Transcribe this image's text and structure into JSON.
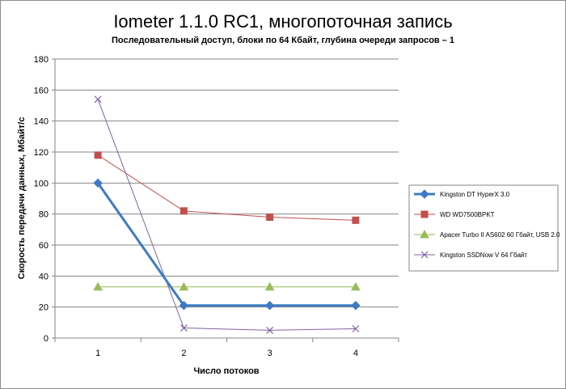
{
  "chart_data": {
    "type": "line",
    "title": "Iometer 1.1.0 RC1, многопоточная запись",
    "subtitle": "Последовательный  доступ, блоки  по 64 Кбайт,  глубина очереди запросов – 1",
    "xlabel": "Число  потоков",
    "ylabel": "Скорость  передачи данных, Мбайт/с",
    "x": [
      1,
      2,
      3,
      4
    ],
    "ylim": [
      0,
      180
    ],
    "yticks": [
      0,
      20,
      40,
      60,
      80,
      100,
      120,
      140,
      160,
      180
    ],
    "grid": true,
    "legend_position": "right",
    "series": [
      {
        "name": "Kingston DT HyperX 3.0",
        "values": [
          100,
          21,
          21,
          21
        ],
        "color": "#3d7bc4",
        "marker": "diamond",
        "width": 3
      },
      {
        "name": "WD WD7500BPKT",
        "values": [
          118,
          82,
          78,
          76
        ],
        "color": "#c0504d",
        "marker": "square",
        "width": 1
      },
      {
        "name": "Apacer Turbo II AS602 60 Гбайт, USB 2.0",
        "values": [
          33,
          33,
          33,
          33
        ],
        "color": "#9bbb59",
        "marker": "triangle",
        "width": 1
      },
      {
        "name": "Kingston SSDNow V 64 Гбайт",
        "values": [
          154,
          6.5,
          5,
          6
        ],
        "color": "#8064a2",
        "marker": "x",
        "width": 1
      }
    ]
  }
}
